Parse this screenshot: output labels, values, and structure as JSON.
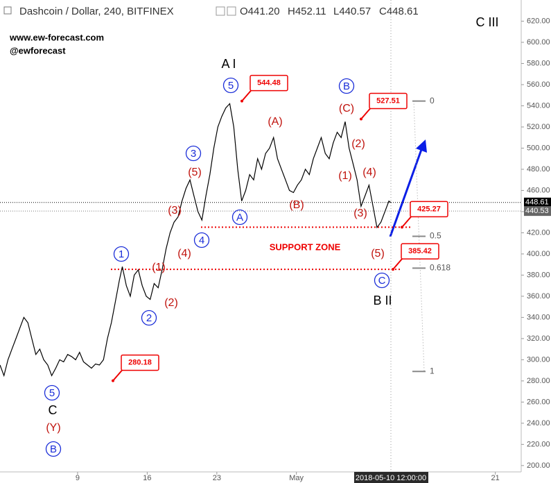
{
  "header": {
    "symbol": "Dashcoin / Dollar, 240, BITFINEX",
    "ohlc": [
      "O441.20",
      "H452.11",
      "L440.57",
      "C448.61"
    ]
  },
  "watermark": [
    "www.ew-forecast.com",
    "@ewforecast"
  ],
  "chart_data": {
    "type": "line",
    "x": [
      1.2,
      1.6,
      2.0,
      2.4,
      2.8,
      3.2,
      3.6,
      4.0,
      4.4,
      4.8,
      5.2,
      5.6,
      6.0,
      6.4,
      6.8,
      7.2,
      7.6,
      8.0,
      8.4,
      8.8,
      9.2,
      9.6,
      10.0,
      10.4,
      10.8,
      11.2,
      11.6,
      12.0,
      12.4,
      12.8,
      13.2,
      13.5,
      13.9,
      14.3,
      14.7,
      15.1,
      15.5,
      15.9,
      16.3,
      16.7,
      17.1,
      17.5,
      17.9,
      18.3,
      18.7,
      19.1,
      19.5,
      19.9,
      20.3,
      20.7,
      21.1,
      21.5,
      21.9,
      22.3,
      22.7,
      23.1,
      23.5,
      23.9,
      24.3,
      24.7,
      25.1,
      25.5,
      25.9,
      26.3,
      26.7,
      27.1,
      27.5,
      27.9,
      28.3,
      28.7,
      29.1,
      29.5,
      29.9,
      30.3,
      30.7,
      31.1,
      31.5,
      31.9,
      32.3,
      32.7,
      33.1,
      33.5,
      33.9,
      34.3,
      34.7,
      35.1,
      35.5,
      35.9,
      36.3,
      36.7,
      37.1,
      37.5,
      37.9,
      38.3,
      38.7,
      39.1,
      39.5,
      39.9,
      40.3,
      40.5
    ],
    "series": [
      {
        "color": "#000000",
        "values": [
          295,
          285,
          300,
          310,
          320,
          330,
          340,
          335,
          320,
          305,
          310,
          300,
          295,
          285,
          292,
          300,
          298,
          305,
          303,
          300,
          307,
          298,
          295,
          292,
          296,
          295,
          300,
          320,
          335,
          355,
          375,
          388,
          370,
          360,
          380,
          385,
          370,
          360,
          357,
          372,
          368,
          385,
          405,
          420,
          430,
          435,
          450,
          462,
          470,
          455,
          440,
          432,
          455,
          475,
          500,
          520,
          530,
          538,
          542,
          520,
          480,
          450,
          460,
          475,
          470,
          490,
          480,
          495,
          500,
          510,
          490,
          480,
          470,
          460,
          458,
          465,
          470,
          480,
          475,
          490,
          500,
          510,
          495,
          490,
          505,
          515,
          510,
          525,
          500,
          485,
          470,
          445,
          455,
          465,
          445,
          425,
          430,
          440,
          450,
          448.61
        ]
      }
    ],
    "xlim": [
      1.2,
      53.6
    ],
    "xticks": [
      9,
      16,
      23,
      {
        "value": 31,
        "label": "May"
      },
      {
        "value": 51,
        "label": "21"
      }
    ],
    "cursor": {
      "value": 40.5,
      "label": "2018-05-10 12:00:00"
    },
    "ylim": [
      194,
      640
    ],
    "yticks": [
      {
        "value": 200,
        "label": "200.00"
      },
      {
        "value": 220,
        "label": "220.00"
      },
      {
        "value": 240,
        "label": "240.00"
      },
      {
        "value": 260,
        "label": "260.00"
      },
      {
        "value": 280,
        "label": "280.00"
      },
      {
        "value": 300,
        "label": "300.00"
      },
      {
        "value": 320,
        "label": "320.00"
      },
      {
        "value": 340,
        "label": "340.00"
      },
      {
        "value": 360,
        "label": "360.00"
      },
      {
        "value": 380,
        "label": "380.00"
      },
      {
        "value": 400,
        "label": "400.00"
      },
      {
        "value": 420,
        "label": "420.00"
      },
      {
        "value": 440,
        "label": "440.00"
      },
      {
        "value": 460,
        "label": "460.00"
      },
      {
        "value": 480,
        "label": "480.00"
      },
      {
        "value": 500,
        "label": "500.00"
      },
      {
        "value": 520,
        "label": "520.00"
      },
      {
        "value": 540,
        "label": "540.00"
      },
      {
        "value": 560,
        "label": "560.00"
      },
      {
        "value": 580,
        "label": "580.00"
      },
      {
        "value": 600,
        "label": "600.00"
      },
      {
        "value": 620,
        "label": "620.00"
      }
    ],
    "price_tags": [
      448.61,
      440.53
    ],
    "levels": [
      544.48,
      527.51,
      425.27,
      385.42,
      280.18
    ],
    "support_zone": {
      "label": "SUPPORT ZONE",
      "levels": [
        425.27,
        385.42
      ]
    },
    "fib": [
      {
        "ratio": 0,
        "price": 544.48
      },
      {
        "ratio": 0.5,
        "price": 416.7
      },
      {
        "ratio": 0.618,
        "price": 386.6
      },
      {
        "ratio": 1,
        "price": 288.9
      }
    ],
    "wave_labels": [
      {
        "text": "5",
        "style": "circle"
      },
      {
        "text": "B",
        "style": "circle"
      },
      {
        "text": "1",
        "style": "circle"
      },
      {
        "text": "2",
        "style": "circle"
      },
      {
        "text": "3",
        "style": "circle"
      },
      {
        "text": "4",
        "style": "circle"
      },
      {
        "text": "5",
        "style": "circle"
      },
      {
        "text": "A",
        "style": "circle"
      },
      {
        "text": "B",
        "style": "circle"
      },
      {
        "text": "C",
        "style": "circle"
      },
      {
        "text": "(Y)",
        "style": "paren"
      },
      {
        "text": "(5)",
        "style": "paren"
      },
      {
        "text": "(3)",
        "style": "paren"
      },
      {
        "text": "(4)",
        "style": "paren"
      },
      {
        "text": "(1)",
        "style": "paren"
      },
      {
        "text": "(2)",
        "style": "paren"
      },
      {
        "text": "(A)",
        "style": "paren"
      },
      {
        "text": "(B)",
        "style": "paren"
      },
      {
        "text": "(C)",
        "style": "paren"
      },
      {
        "text": "(2)",
        "style": "paren"
      },
      {
        "text": "(1)",
        "style": "paren"
      },
      {
        "text": "(4)",
        "style": "paren"
      },
      {
        "text": "(3)",
        "style": "paren"
      },
      {
        "text": "(5)",
        "style": "paren"
      },
      {
        "text": "C",
        "style": "plain"
      },
      {
        "text": "A I",
        "style": "plain"
      },
      {
        "text": "B II",
        "style": "plain"
      },
      {
        "text": "C III",
        "style": "plain"
      }
    ]
  }
}
